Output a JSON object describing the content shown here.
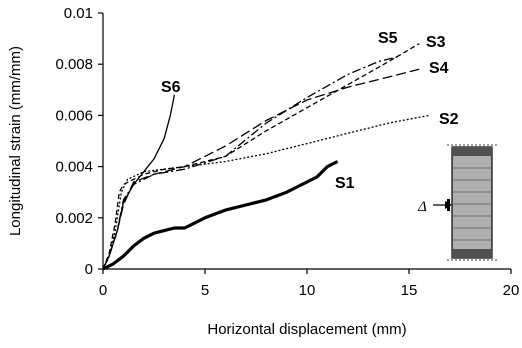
{
  "chart_data": {
    "type": "line",
    "xlabel": "Horizontal displacement (mm)",
    "ylabel": "Longitudinal strain (mm/mm)",
    "xlim": [
      0,
      20
    ],
    "ylim": [
      0,
      0.01
    ],
    "x_ticks": [
      0,
      5,
      10,
      15,
      20
    ],
    "y_ticks": [
      0,
      0.002,
      0.004,
      0.006,
      0.008,
      0.01
    ],
    "x_tick_labels": [
      "0",
      "5",
      "10",
      "15",
      "20"
    ],
    "y_tick_labels": [
      "0",
      "0.002",
      "0.004",
      "0.006",
      "0.008",
      "0.01"
    ],
    "grid": false,
    "inset_label": "Δ",
    "series": [
      {
        "name": "S1",
        "style": "solid-thick",
        "points": [
          [
            0,
            0
          ],
          [
            0.5,
            0.0002
          ],
          [
            1.0,
            0.0005
          ],
          [
            1.5,
            0.0009
          ],
          [
            2.0,
            0.0012
          ],
          [
            2.5,
            0.0014
          ],
          [
            3.0,
            0.0015
          ],
          [
            3.5,
            0.0016
          ],
          [
            4.0,
            0.0016
          ],
          [
            4.5,
            0.0018
          ],
          [
            5.0,
            0.002
          ],
          [
            6.0,
            0.0023
          ],
          [
            7.0,
            0.0025
          ],
          [
            8.0,
            0.0027
          ],
          [
            9.0,
            0.003
          ],
          [
            10.0,
            0.0034
          ],
          [
            10.5,
            0.0036
          ],
          [
            11.0,
            0.004
          ],
          [
            11.5,
            0.0042
          ]
        ]
      },
      {
        "name": "S2",
        "style": "dotted",
        "points": [
          [
            0,
            0
          ],
          [
            0.3,
            0.0005
          ],
          [
            0.6,
            0.0015
          ],
          [
            0.9,
            0.003
          ],
          [
            1.2,
            0.0035
          ],
          [
            2.0,
            0.0038
          ],
          [
            4.0,
            0.004
          ],
          [
            6.0,
            0.0042
          ],
          [
            8.0,
            0.0045
          ],
          [
            10.0,
            0.0049
          ],
          [
            12.0,
            0.0053
          ],
          [
            14.0,
            0.0057
          ],
          [
            16.0,
            0.006
          ]
        ]
      },
      {
        "name": "S3",
        "style": "dashed",
        "points": [
          [
            0,
            0
          ],
          [
            0.3,
            0.0006
          ],
          [
            0.6,
            0.0018
          ],
          [
            0.8,
            0.003
          ],
          [
            1.0,
            0.0033
          ],
          [
            2.0,
            0.0037
          ],
          [
            3.0,
            0.0039
          ],
          [
            4.0,
            0.004
          ],
          [
            6.0,
            0.0044
          ],
          [
            8.0,
            0.0054
          ],
          [
            10.0,
            0.0063
          ],
          [
            12.0,
            0.0072
          ],
          [
            14.0,
            0.0081
          ],
          [
            15.5,
            0.0088
          ]
        ]
      },
      {
        "name": "S4",
        "style": "long-dashed",
        "points": [
          [
            0,
            0
          ],
          [
            0.3,
            0.0005
          ],
          [
            0.7,
            0.0015
          ],
          [
            1.0,
            0.0025
          ],
          [
            1.5,
            0.0034
          ],
          [
            2.5,
            0.0037
          ],
          [
            4.0,
            0.004
          ],
          [
            6.0,
            0.0048
          ],
          [
            8.0,
            0.0058
          ],
          [
            10.0,
            0.0066
          ],
          [
            12.0,
            0.0071
          ],
          [
            14.0,
            0.0075
          ],
          [
            15.5,
            0.0078
          ]
        ]
      },
      {
        "name": "S5",
        "style": "dash-dot",
        "points": [
          [
            0,
            0
          ],
          [
            0.3,
            0.0005
          ],
          [
            0.7,
            0.0015
          ],
          [
            1.0,
            0.0027
          ],
          [
            1.5,
            0.0033
          ],
          [
            2.5,
            0.0037
          ],
          [
            4.0,
            0.0039
          ],
          [
            6.0,
            0.0044
          ],
          [
            8.0,
            0.0057
          ],
          [
            10.0,
            0.0067
          ],
          [
            12.0,
            0.0076
          ],
          [
            13.5,
            0.0081
          ],
          [
            14.5,
            0.0083
          ]
        ]
      },
      {
        "name": "S6",
        "style": "solid-thin",
        "points": [
          [
            0,
            0
          ],
          [
            0.3,
            0.0005
          ],
          [
            0.7,
            0.0015
          ],
          [
            1.0,
            0.0026
          ],
          [
            1.5,
            0.0033
          ],
          [
            2.0,
            0.0038
          ],
          [
            2.5,
            0.0043
          ],
          [
            3.0,
            0.0051
          ],
          [
            3.3,
            0.006
          ],
          [
            3.5,
            0.0068
          ]
        ]
      }
    ]
  }
}
